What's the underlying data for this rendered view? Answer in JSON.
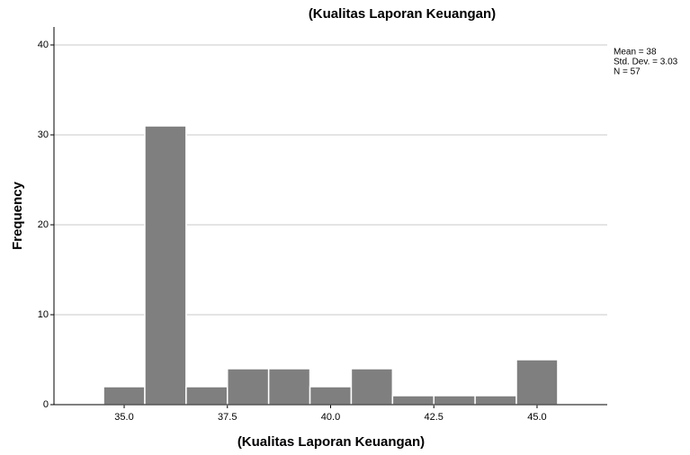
{
  "chart_data": {
    "type": "histogram",
    "title": "(Kualitas Laporan Keuangan)",
    "x_label": "(Kualitas Laporan Keuangan)",
    "y_label": "Frequency",
    "bins": [
      34.5,
      35.5,
      36.5,
      37.5,
      38.5,
      39.5,
      40.5,
      41.5,
      42.5,
      43.5,
      44.5,
      45.5
    ],
    "values": [
      2,
      31,
      2,
      4,
      4,
      2,
      4,
      1,
      1,
      1,
      5
    ],
    "color": "#7f7f7f",
    "xlim": [
      33.3,
      46.7
    ],
    "xticks": [
      {
        "value": 35,
        "label": "35.0"
      },
      37.5,
      {
        "value": 40,
        "label": "40.0"
      },
      42.5,
      {
        "value": 45,
        "label": "45.0"
      }
    ],
    "ylim": [
      0,
      42
    ],
    "yticks": [
      0,
      10,
      20,
      30,
      40
    ],
    "grid": true,
    "annotations": [
      "Mean = 38",
      "Std. Dev. = 3.03",
      "N = 57"
    ]
  }
}
